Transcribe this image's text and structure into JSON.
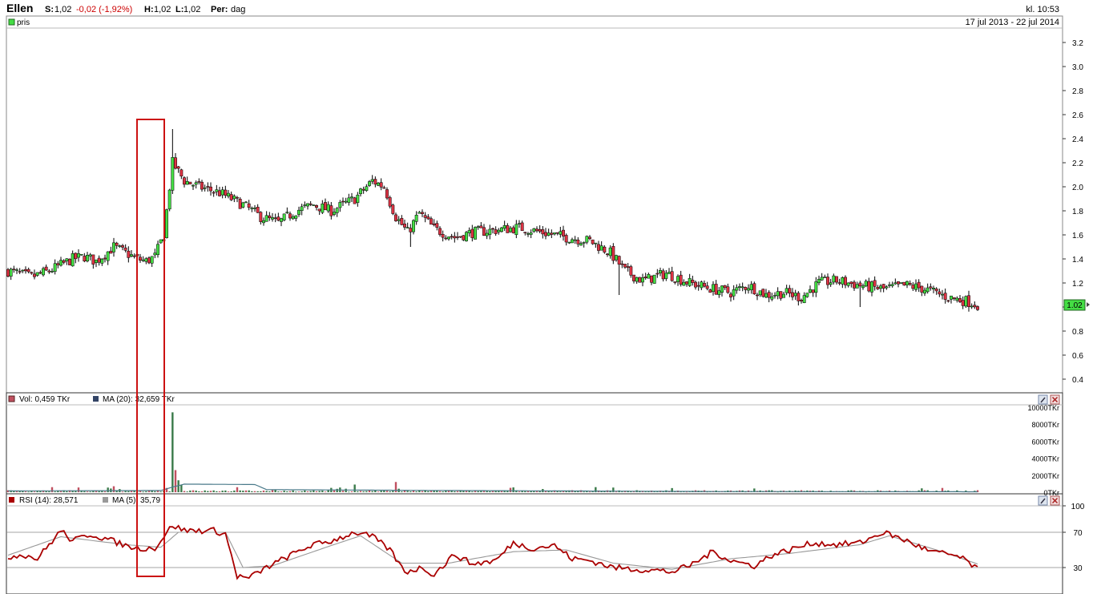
{
  "header": {
    "ticker": "Ellen",
    "last_label": "S:",
    "last_value": "1,02",
    "change": "-0,02 (-1,92%)",
    "high_label": "H:",
    "high_value": "1,02",
    "low_label": "L:",
    "low_value": "1,02",
    "period_label": "Per:",
    "period_value": "dag",
    "clock": "kl. 10:53"
  },
  "colors": {
    "up": "#44dd44",
    "down": "#dd3344",
    "rsi_line": "#aa0000",
    "rsi_ma_line": "#999999",
    "vol_up": "#3a7a4a",
    "vol_down": "#c05060",
    "vol_ma_line": "#4a7a8a",
    "highlight_box": "#cc1111",
    "last_price_bg": "#44dd44"
  },
  "chart_data": [
    {
      "type": "candlestick",
      "legend": "pris",
      "date_range": "17 jul 2013 - 22 jul 2014",
      "y_ticks": [
        "0.4",
        "0.6",
        "0.8",
        "1.0",
        "1.2",
        "1.4",
        "1.6",
        "1.8",
        "2.0",
        "2.2",
        "2.4",
        "2.6",
        "2.8",
        "3.0",
        "3.2"
      ],
      "ylim": [
        0.3,
        3.3
      ],
      "last_price_label": "1.02",
      "grid": false,
      "anchors": [
        [
          0,
          1.3
        ],
        [
          8,
          1.25
        ],
        [
          14,
          1.3
        ],
        [
          18,
          1.35
        ],
        [
          22,
          1.4
        ],
        [
          26,
          1.42
        ],
        [
          30,
          1.38
        ],
        [
          36,
          1.5
        ],
        [
          40,
          1.45
        ],
        [
          44,
          1.4
        ],
        [
          47,
          1.38
        ],
        [
          50,
          1.42
        ],
        [
          53,
          1.6
        ],
        [
          56,
          2.2
        ],
        [
          60,
          2.05
        ],
        [
          65,
          2.0
        ],
        [
          72,
          1.95
        ],
        [
          80,
          1.85
        ],
        [
          86,
          1.75
        ],
        [
          92,
          1.7
        ],
        [
          98,
          1.8
        ],
        [
          104,
          1.85
        ],
        [
          110,
          1.8
        ],
        [
          118,
          1.9
        ],
        [
          124,
          2.05
        ],
        [
          128,
          2.0
        ],
        [
          132,
          1.75
        ],
        [
          136,
          1.62
        ],
        [
          140,
          1.78
        ],
        [
          145,
          1.65
        ],
        [
          152,
          1.58
        ],
        [
          158,
          1.62
        ],
        [
          166,
          1.64
        ],
        [
          174,
          1.66
        ],
        [
          182,
          1.62
        ],
        [
          190,
          1.58
        ],
        [
          198,
          1.55
        ],
        [
          205,
          1.45
        ],
        [
          210,
          1.3
        ],
        [
          216,
          1.22
        ],
        [
          224,
          1.28
        ],
        [
          232,
          1.2
        ],
        [
          240,
          1.15
        ],
        [
          246,
          1.12
        ],
        [
          252,
          1.18
        ],
        [
          258,
          1.1
        ],
        [
          264,
          1.12
        ],
        [
          270,
          1.08
        ],
        [
          276,
          1.2
        ],
        [
          282,
          1.22
        ],
        [
          290,
          1.18
        ],
        [
          298,
          1.15
        ],
        [
          306,
          1.18
        ],
        [
          312,
          1.15
        ],
        [
          320,
          1.08
        ],
        [
          326,
          1.05
        ],
        [
          330,
          1.02
        ]
      ],
      "spikes": [
        [
          56,
          2.48
        ],
        [
          57,
          2.28
        ],
        [
          54,
          1.8
        ],
        [
          137,
          1.5
        ],
        [
          208,
          1.1
        ],
        [
          290,
          1.0
        ]
      ],
      "n_bars": 331
    },
    {
      "type": "bar",
      "legend_vol": "Vol: 0,459 TKr",
      "legend_ma": "MA (20): 32,659 TKr",
      "y_ticks": [
        "0TKr",
        "2000TKr",
        "4000TKr",
        "6000TKr",
        "8000TKr",
        "10000TKr"
      ],
      "ylim": [
        0,
        10000
      ],
      "major": [
        [
          56,
          9400
        ],
        [
          57,
          2600
        ],
        [
          58,
          1400
        ],
        [
          59,
          900
        ],
        [
          54,
          500
        ],
        [
          36,
          700
        ],
        [
          118,
          900
        ],
        [
          132,
          1200
        ]
      ],
      "baseline_volume": 150,
      "ma_anchors": [
        [
          0,
          150
        ],
        [
          52,
          200
        ],
        [
          56,
          600
        ],
        [
          60,
          950
        ],
        [
          84,
          900
        ],
        [
          88,
          300
        ],
        [
          150,
          200
        ],
        [
          240,
          80
        ],
        [
          330,
          50
        ]
      ]
    },
    {
      "type": "line",
      "legend_rsi": "RSI (14): 28,571",
      "legend_ma": "MA (5): 35,79",
      "y_ticks": [
        "30",
        "70",
        "100"
      ],
      "ylim": [
        0,
        100
      ],
      "reference_lines": [
        30,
        70
      ],
      "rsi_anchors": [
        [
          0,
          42
        ],
        [
          5,
          45
        ],
        [
          10,
          40
        ],
        [
          18,
          72
        ],
        [
          22,
          60
        ],
        [
          28,
          68
        ],
        [
          34,
          62
        ],
        [
          40,
          55
        ],
        [
          44,
          52
        ],
        [
          50,
          52
        ],
        [
          56,
          78
        ],
        [
          60,
          72
        ],
        [
          70,
          72
        ],
        [
          74,
          68
        ],
        [
          78,
          20
        ],
        [
          82,
          18
        ],
        [
          88,
          30
        ],
        [
          95,
          42
        ],
        [
          103,
          55
        ],
        [
          110,
          60
        ],
        [
          118,
          70
        ],
        [
          124,
          65
        ],
        [
          130,
          50
        ],
        [
          135,
          25
        ],
        [
          141,
          30
        ],
        [
          145,
          22
        ],
        [
          152,
          45
        ],
        [
          158,
          34
        ],
        [
          166,
          38
        ],
        [
          172,
          58
        ],
        [
          178,
          52
        ],
        [
          186,
          55
        ],
        [
          192,
          40
        ],
        [
          198,
          38
        ],
        [
          206,
          30
        ],
        [
          214,
          28
        ],
        [
          220,
          27
        ],
        [
          226,
          25
        ],
        [
          232,
          32
        ],
        [
          240,
          48
        ],
        [
          246,
          38
        ],
        [
          254,
          32
        ],
        [
          260,
          44
        ],
        [
          266,
          50
        ],
        [
          274,
          58
        ],
        [
          282,
          56
        ],
        [
          290,
          58
        ],
        [
          298,
          70
        ],
        [
          306,
          60
        ],
        [
          314,
          48
        ],
        [
          322,
          44
        ],
        [
          326,
          38
        ],
        [
          330,
          28
        ]
      ],
      "rsi_ma_anchors": [
        [
          0,
          44
        ],
        [
          18,
          65
        ],
        [
          40,
          56
        ],
        [
          52,
          53
        ],
        [
          58,
          70
        ],
        [
          74,
          70
        ],
        [
          80,
          30
        ],
        [
          90,
          32
        ],
        [
          110,
          55
        ],
        [
          120,
          66
        ],
        [
          134,
          35
        ],
        [
          150,
          35
        ],
        [
          172,
          48
        ],
        [
          190,
          50
        ],
        [
          206,
          35
        ],
        [
          226,
          28
        ],
        [
          246,
          40
        ],
        [
          266,
          46
        ],
        [
          290,
          56
        ],
        [
          300,
          66
        ],
        [
          318,
          48
        ],
        [
          330,
          34
        ]
      ]
    }
  ]
}
